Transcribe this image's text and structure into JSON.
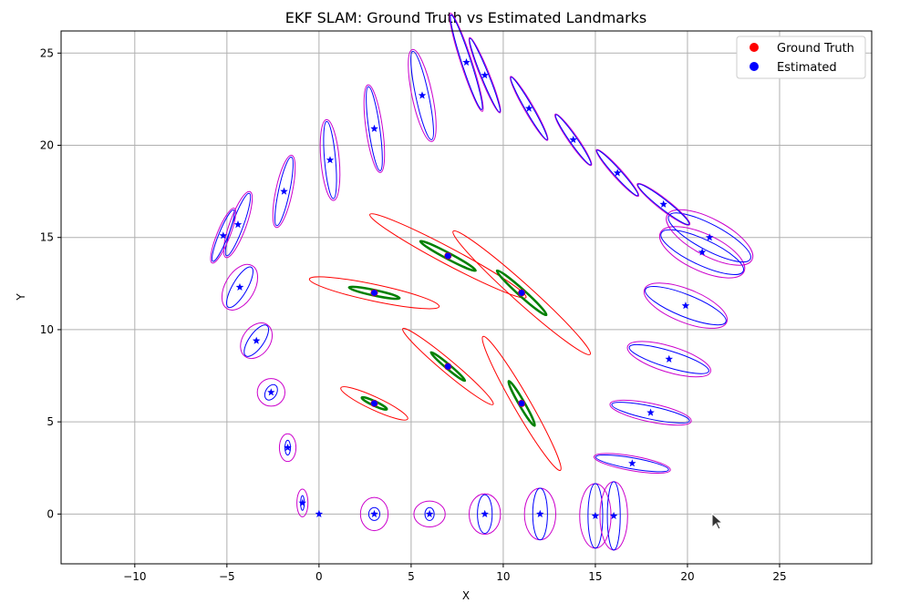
{
  "chart_data": {
    "type": "scatter",
    "title": "EKF SLAM: Ground Truth vs Estimated Landmarks",
    "xlabel": "X",
    "ylabel": "Y",
    "xlim": [
      -14,
      30
    ],
    "ylim": [
      -2.7,
      26.2
    ],
    "xticks": [
      -10,
      -5,
      0,
      5,
      10,
      15,
      20,
      25
    ],
    "yticks": [
      0,
      5,
      10,
      15,
      20,
      25
    ],
    "grid": true,
    "legend_position": "top-right",
    "legend": [
      {
        "label": "Ground Truth",
        "color": "#ff0000"
      },
      {
        "label": "Estimated",
        "color": "#0000ff"
      }
    ],
    "landmarks": {
      "ground_truth": [
        [
          3,
          6
        ],
        [
          7,
          8
        ],
        [
          11,
          6
        ],
        [
          3,
          12
        ],
        [
          7,
          14
        ],
        [
          11,
          12
        ]
      ],
      "estimated": [
        [
          3,
          6
        ],
        [
          7,
          8
        ],
        [
          11,
          6
        ],
        [
          3,
          12
        ],
        [
          7,
          14
        ],
        [
          11,
          12
        ]
      ],
      "covariance_outer": [
        {
          "center": [
            3,
            6
          ],
          "rx": 2.0,
          "ry": 0.35,
          "angle": -25
        },
        {
          "center": [
            7,
            8
          ],
          "rx": 3.2,
          "ry": 0.35,
          "angle": -40
        },
        {
          "center": [
            11,
            6
          ],
          "rx": 4.2,
          "ry": 0.45,
          "angle": -60
        },
        {
          "center": [
            3,
            12
          ],
          "rx": 3.6,
          "ry": 0.45,
          "angle": -12
        },
        {
          "center": [
            7,
            14
          ],
          "rx": 4.8,
          "ry": 0.45,
          "angle": -28
        },
        {
          "center": [
            11,
            12
          ],
          "rx": 5.0,
          "ry": 0.5,
          "angle": -42
        }
      ],
      "covariance_inner": [
        {
          "center": [
            3,
            6
          ],
          "rx": 0.75,
          "ry": 0.12,
          "angle": -25
        },
        {
          "center": [
            7,
            8
          ],
          "rx": 1.2,
          "ry": 0.12,
          "angle": -40
        },
        {
          "center": [
            11,
            6
          ],
          "rx": 1.4,
          "ry": 0.15,
          "angle": -60
        },
        {
          "center": [
            3,
            12
          ],
          "rx": 1.4,
          "ry": 0.15,
          "angle": -12
        },
        {
          "center": [
            7,
            14
          ],
          "rx": 1.7,
          "ry": 0.16,
          "angle": -28
        },
        {
          "center": [
            11,
            12
          ],
          "rx": 1.8,
          "ry": 0.18,
          "angle": -42
        }
      ]
    },
    "trajectory": {
      "estimated": [
        [
          0,
          0
        ],
        [
          3,
          0
        ],
        [
          6,
          0
        ],
        [
          9,
          0
        ],
        [
          12,
          0
        ],
        [
          15,
          -0.1
        ],
        [
          16,
          -0.1
        ],
        [
          17,
          2.75
        ],
        [
          18,
          5.5
        ],
        [
          19,
          8.4
        ],
        [
          19.9,
          11.3
        ],
        [
          20.8,
          14.2
        ],
        [
          21.2,
          15
        ],
        [
          18.7,
          16.8
        ],
        [
          16.2,
          18.5
        ],
        [
          13.8,
          20.3
        ],
        [
          11.4,
          22.0
        ],
        [
          9.0,
          23.8
        ],
        [
          8.0,
          24.5
        ],
        [
          5.6,
          22.7
        ],
        [
          3.0,
          20.9
        ],
        [
          0.6,
          19.2
        ],
        [
          -1.9,
          17.5
        ],
        [
          -4.4,
          15.7
        ],
        [
          -5.2,
          15.1
        ],
        [
          -4.3,
          12.3
        ],
        [
          -3.4,
          9.4
        ],
        [
          -2.6,
          6.6
        ],
        [
          -1.7,
          3.6
        ],
        [
          -0.9,
          0.6
        ]
      ],
      "cov_outer": [
        {
          "rx": 0.0,
          "ry": 0.0,
          "angle": 0
        },
        {
          "rx": 0.75,
          "ry": 0.9,
          "angle": 0
        },
        {
          "rx": 0.85,
          "ry": 0.7,
          "angle": 0
        },
        {
          "rx": 0.85,
          "ry": 1.1,
          "angle": 0
        },
        {
          "rx": 0.85,
          "ry": 1.4,
          "angle": 0
        },
        {
          "rx": 0.85,
          "ry": 1.75,
          "angle": 0
        },
        {
          "rx": 0.75,
          "ry": 1.85,
          "angle": 0
        },
        {
          "rx": 0.4,
          "ry": 2.1,
          "angle": 80
        },
        {
          "rx": 0.5,
          "ry": 2.25,
          "angle": 78
        },
        {
          "rx": 0.7,
          "ry": 2.35,
          "angle": 73
        },
        {
          "rx": 0.9,
          "ry": 2.4,
          "angle": 68
        },
        {
          "rx": 1.0,
          "ry": 2.5,
          "angle": 65
        },
        {
          "rx": 1.0,
          "ry": 2.6,
          "angle": 62
        },
        {
          "rx": 0.3,
          "ry": 1.8,
          "angle": 52
        },
        {
          "rx": 0.25,
          "ry": 1.7,
          "angle": 42
        },
        {
          "rx": 0.25,
          "ry": 1.7,
          "angle": 35
        },
        {
          "rx": 0.25,
          "ry": 2.0,
          "angle": 30
        },
        {
          "rx": 0.25,
          "ry": 2.2,
          "angle": 22
        },
        {
          "rx": 0.3,
          "ry": 2.8,
          "angle": 18
        },
        {
          "rx": 0.55,
          "ry": 2.55,
          "angle": 12
        },
        {
          "rx": 0.45,
          "ry": 2.4,
          "angle": 8
        },
        {
          "rx": 0.5,
          "ry": 2.2,
          "angle": 5
        },
        {
          "rx": 0.45,
          "ry": 2.0,
          "angle": -12
        },
        {
          "rx": 0.45,
          "ry": 1.9,
          "angle": -20
        },
        {
          "rx": 0.35,
          "ry": 1.6,
          "angle": -22
        },
        {
          "rx": 0.8,
          "ry": 1.35,
          "angle": -30
        },
        {
          "rx": 0.75,
          "ry": 1.05,
          "angle": -35
        },
        {
          "rx": 0.75,
          "ry": 0.75,
          "angle": 0
        },
        {
          "rx": 0.45,
          "ry": 0.75,
          "angle": 0
        },
        {
          "rx": 0.3,
          "ry": 0.75,
          "angle": 0
        }
      ],
      "cov_inner": [
        {
          "rx": 0.0,
          "ry": 0.0,
          "angle": 0
        },
        {
          "rx": 0.3,
          "ry": 0.35,
          "angle": 0
        },
        {
          "rx": 0.25,
          "ry": 0.35,
          "angle": 0
        },
        {
          "rx": 0.4,
          "ry": 1.05,
          "angle": 0
        },
        {
          "rx": 0.4,
          "ry": 1.4,
          "angle": 0
        },
        {
          "rx": 0.4,
          "ry": 1.75,
          "angle": 0
        },
        {
          "rx": 0.35,
          "ry": 1.85,
          "angle": 0
        },
        {
          "rx": 0.3,
          "ry": 2.0,
          "angle": 80
        },
        {
          "rx": 0.35,
          "ry": 2.15,
          "angle": 78
        },
        {
          "rx": 0.45,
          "ry": 2.25,
          "angle": 73
        },
        {
          "rx": 0.6,
          "ry": 2.35,
          "angle": 68
        },
        {
          "rx": 0.7,
          "ry": 2.45,
          "angle": 65
        },
        {
          "rx": 0.7,
          "ry": 2.5,
          "angle": 62
        },
        {
          "rx": 0.25,
          "ry": 1.75,
          "angle": 52
        },
        {
          "rx": 0.2,
          "ry": 1.65,
          "angle": 42
        },
        {
          "rx": 0.2,
          "ry": 1.65,
          "angle": 35
        },
        {
          "rx": 0.2,
          "ry": 1.95,
          "angle": 30
        },
        {
          "rx": 0.2,
          "ry": 2.15,
          "angle": 22
        },
        {
          "rx": 0.25,
          "ry": 2.7,
          "angle": 18
        },
        {
          "rx": 0.35,
          "ry": 2.45,
          "angle": 12
        },
        {
          "rx": 0.3,
          "ry": 2.3,
          "angle": 8
        },
        {
          "rx": 0.3,
          "ry": 2.1,
          "angle": 5
        },
        {
          "rx": 0.3,
          "ry": 1.9,
          "angle": -12
        },
        {
          "rx": 0.3,
          "ry": 1.8,
          "angle": -20
        },
        {
          "rx": 0.25,
          "ry": 1.5,
          "angle": -22
        },
        {
          "rx": 0.4,
          "ry": 1.25,
          "angle": -30
        },
        {
          "rx": 0.4,
          "ry": 1.0,
          "angle": -35
        },
        {
          "rx": 0.3,
          "ry": 0.45,
          "angle": -30
        },
        {
          "rx": 0.15,
          "ry": 0.4,
          "angle": 0
        },
        {
          "rx": 0.1,
          "ry": 0.4,
          "angle": 0
        }
      ]
    },
    "colors": {
      "ground_truth": "#ff0000",
      "estimated": "#0000ff",
      "landmark_cov_outer": "#ff0000",
      "landmark_cov_inner": "#008000",
      "pose_cov_outer": "#cc00cc",
      "pose_cov_inner": "#0000ff",
      "grid": "#b0b0b0"
    }
  }
}
